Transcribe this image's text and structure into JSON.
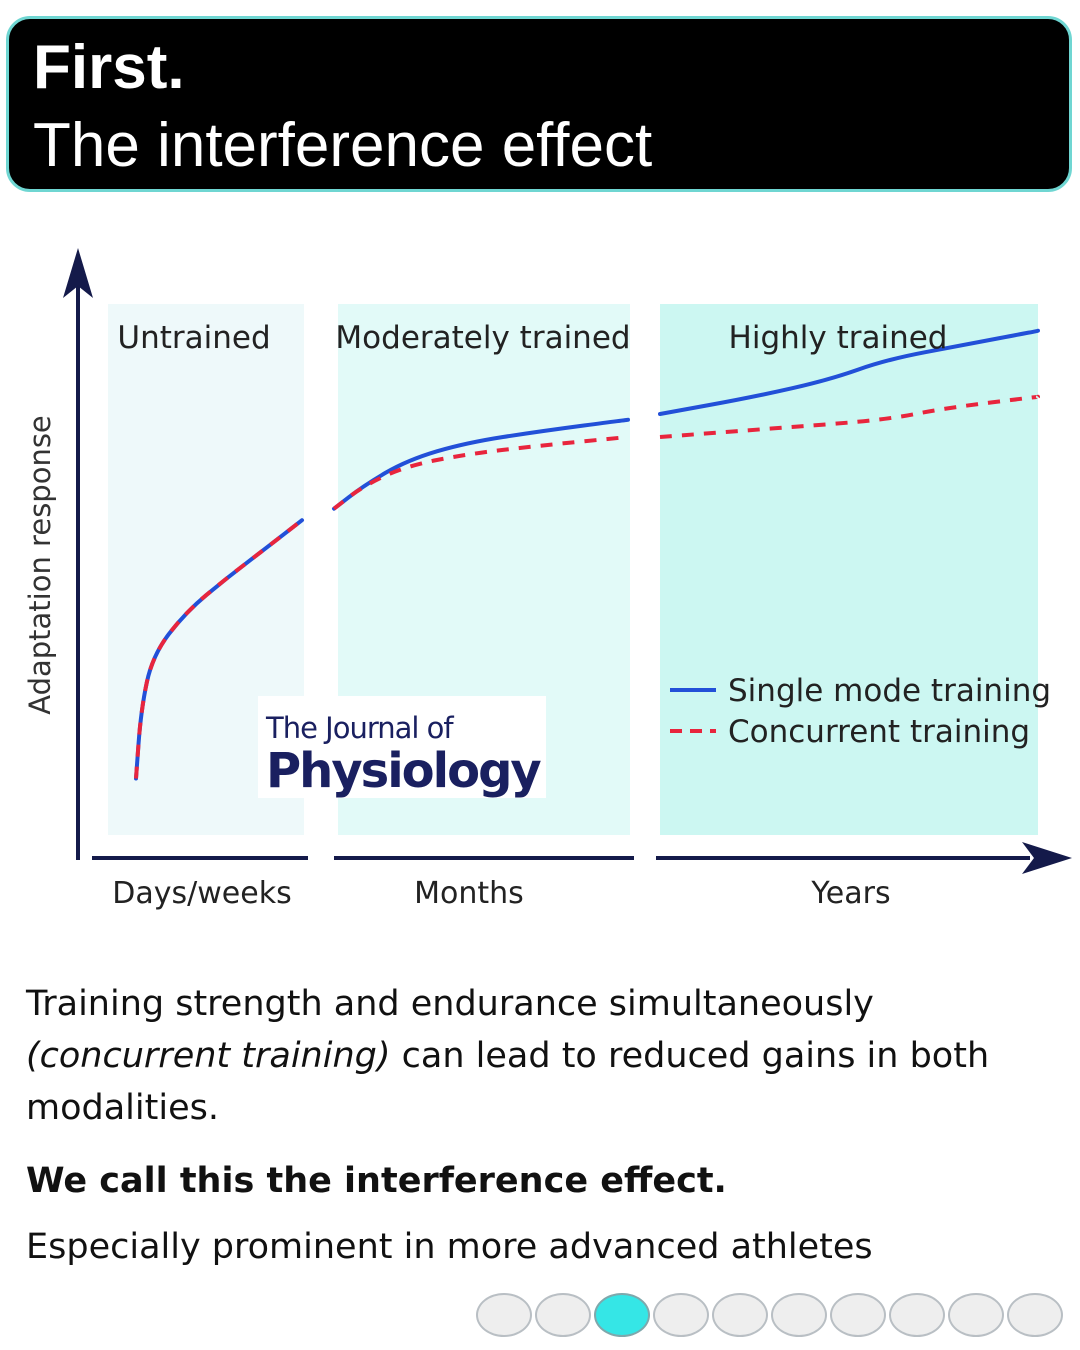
{
  "header": {
    "line1": "First.",
    "line2": "The interference effect"
  },
  "chart_data": {
    "type": "line",
    "ylabel": "Adaptation response",
    "phases": [
      {
        "label": "Untrained",
        "xlabel": "Days/weeks"
      },
      {
        "label": "Moderately trained",
        "xlabel": "Months"
      },
      {
        "label": "Highly trained",
        "xlabel": "Years"
      }
    ],
    "series": [
      {
        "name": "Single mode training",
        "color": "#2250d8",
        "style": "solid",
        "segments": [
          [
            [
              0,
              0.04
            ],
            [
              0.03,
              0.28
            ],
            [
              0.1,
              0.47
            ],
            [
              0.3,
              0.62
            ],
            [
              0.55,
              0.74
            ],
            [
              0.8,
              0.85
            ],
            [
              1,
              0.94
            ]
          ],
          [
            [
              0,
              0.98
            ],
            [
              0.1,
              1.06
            ],
            [
              0.25,
              1.15
            ],
            [
              0.45,
              1.21
            ],
            [
              0.7,
              1.25
            ],
            [
              1,
              1.29
            ]
          ],
          [
            [
              0,
              1.31
            ],
            [
              0.25,
              1.37
            ],
            [
              0.45,
              1.43
            ],
            [
              0.6,
              1.5
            ],
            [
              0.8,
              1.55
            ],
            [
              1,
              1.6
            ]
          ]
        ]
      },
      {
        "name": "Concurrent training",
        "color": "#e8253d",
        "style": "dashed",
        "segments": [
          [
            [
              0,
              0.04
            ],
            [
              0.03,
              0.28
            ],
            [
              0.1,
              0.47
            ],
            [
              0.3,
              0.62
            ],
            [
              0.55,
              0.74
            ],
            [
              0.8,
              0.85
            ],
            [
              1,
              0.94
            ]
          ],
          [
            [
              0,
              0.98
            ],
            [
              0.1,
              1.06
            ],
            [
              0.25,
              1.13
            ],
            [
              0.45,
              1.17
            ],
            [
              0.7,
              1.2
            ],
            [
              1,
              1.23
            ]
          ],
          [
            [
              0,
              1.23
            ],
            [
              0.3,
              1.26
            ],
            [
              0.6,
              1.29
            ],
            [
              0.75,
              1.33
            ],
            [
              1,
              1.37
            ]
          ]
        ]
      }
    ]
  },
  "logo": {
    "line1": "The Journal of",
    "line2": "Physiology"
  },
  "body": {
    "p1_italic": "(concurrent training)",
    "p1_pre": "Training strength and endurance simultaneously ",
    "p1_post": " can lead to reduced gains in both modalities.",
    "p2": "We call this the interference effect.",
    "p3": "Especially prominent in more advanced athletes"
  },
  "pagination": {
    "count": 10,
    "active_index": 2
  }
}
